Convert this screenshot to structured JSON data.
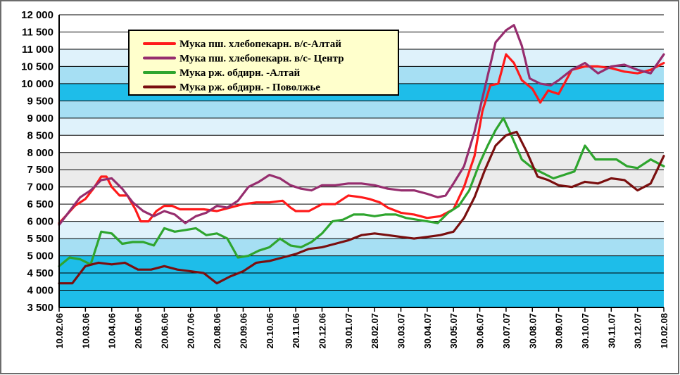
{
  "chart_data": {
    "type": "line",
    "title": "",
    "xlabel": "",
    "ylabel": "",
    "ylim": [
      3500,
      12000
    ],
    "yticks": [
      3500,
      4000,
      4500,
      5000,
      5500,
      6000,
      6500,
      7000,
      7500,
      8000,
      8500,
      9000,
      9500,
      10000,
      10500,
      11000,
      11500,
      12000
    ],
    "ytick_labels": [
      "3 500",
      "4 000",
      "4 500",
      "5 000",
      "5 500",
      "6 000",
      "6 500",
      "7 000",
      "7 500",
      "8 000",
      "8 500",
      "9 000",
      "9 500",
      "10 000",
      "10 500",
      "11 000",
      "11 500",
      "12 000"
    ],
    "categories": [
      "10.02.06",
      "10.03.06",
      "10.04.06",
      "20.05.06",
      "20.06.06",
      "20.07.06",
      "20.08.06",
      "20.09.06",
      "20.10.06",
      "20.11.06",
      "20.12.06",
      "30.01.07",
      "28.02.07",
      "30.03.07",
      "30.04.07",
      "30.05.07",
      "30.06.07",
      "30.07.07",
      "30.08.07",
      "30.09.07",
      "30.10.07",
      "30.11.07",
      "30.12.07",
      "10.02.08"
    ],
    "grid": true,
    "legend_position": "top-center",
    "background_bands": [
      "#1ebde9",
      "#a6dff3",
      "#dff2fb",
      "#ffffff",
      "#ebebeb"
    ],
    "series": [
      {
        "name": "Мука пш. хлебопекарн. в/с-Алтай",
        "color": "#ff1a1a",
        "points": [
          [
            0,
            5950
          ],
          [
            0.3,
            6200
          ],
          [
            0.6,
            6450
          ],
          [
            1,
            6650
          ],
          [
            1.3,
            6950
          ],
          [
            1.6,
            7300
          ],
          [
            1.8,
            7300
          ],
          [
            2,
            7000
          ],
          [
            2.3,
            6750
          ],
          [
            2.6,
            6750
          ],
          [
            2.9,
            6350
          ],
          [
            3.1,
            6000
          ],
          [
            3.4,
            6000
          ],
          [
            3.7,
            6300
          ],
          [
            4,
            6450
          ],
          [
            4.3,
            6450
          ],
          [
            4.6,
            6350
          ],
          [
            5,
            6350
          ],
          [
            5.5,
            6350
          ],
          [
            6,
            6300
          ],
          [
            6.5,
            6400
          ],
          [
            7,
            6500
          ],
          [
            7.5,
            6550
          ],
          [
            8,
            6550
          ],
          [
            8.5,
            6600
          ],
          [
            8.8,
            6400
          ],
          [
            9,
            6300
          ],
          [
            9.5,
            6300
          ],
          [
            10,
            6500
          ],
          [
            10.5,
            6500
          ],
          [
            11,
            6750
          ],
          [
            11.5,
            6700
          ],
          [
            11.8,
            6650
          ],
          [
            12.2,
            6550
          ],
          [
            12.5,
            6400
          ],
          [
            13,
            6250
          ],
          [
            13.5,
            6200
          ],
          [
            14,
            6100
          ],
          [
            14.5,
            6150
          ],
          [
            15,
            6350
          ],
          [
            15.4,
            7000
          ],
          [
            15.8,
            7900
          ],
          [
            16.1,
            9200
          ],
          [
            16.4,
            9950
          ],
          [
            16.7,
            10000
          ],
          [
            17,
            10850
          ],
          [
            17.3,
            10600
          ],
          [
            17.6,
            10100
          ],
          [
            18,
            9850
          ],
          [
            18.3,
            9450
          ],
          [
            18.6,
            9800
          ],
          [
            19,
            9700
          ],
          [
            19.5,
            10400
          ],
          [
            20,
            10500
          ],
          [
            20.5,
            10500
          ],
          [
            21,
            10450
          ],
          [
            21.5,
            10350
          ],
          [
            22,
            10300
          ],
          [
            22.5,
            10400
          ],
          [
            23,
            10600
          ]
        ]
      },
      {
        "name": "Мука пш. хлебопекарн. в/с- Центр",
        "color": "#962d6e",
        "points": [
          [
            0,
            5900
          ],
          [
            0.4,
            6300
          ],
          [
            0.8,
            6700
          ],
          [
            1.2,
            6900
          ],
          [
            1.6,
            7200
          ],
          [
            2,
            7250
          ],
          [
            2.4,
            6950
          ],
          [
            2.8,
            6550
          ],
          [
            3.2,
            6300
          ],
          [
            3.6,
            6150
          ],
          [
            4,
            6300
          ],
          [
            4.4,
            6200
          ],
          [
            4.8,
            5950
          ],
          [
            5.2,
            6150
          ],
          [
            5.6,
            6250
          ],
          [
            6,
            6450
          ],
          [
            6.4,
            6400
          ],
          [
            6.8,
            6600
          ],
          [
            7.2,
            7000
          ],
          [
            7.6,
            7150
          ],
          [
            8,
            7350
          ],
          [
            8.4,
            7250
          ],
          [
            8.8,
            7050
          ],
          [
            9.2,
            6950
          ],
          [
            9.6,
            6900
          ],
          [
            10,
            7050
          ],
          [
            10.5,
            7050
          ],
          [
            11,
            7100
          ],
          [
            11.5,
            7100
          ],
          [
            12,
            7050
          ],
          [
            12.5,
            6950
          ],
          [
            13,
            6900
          ],
          [
            13.5,
            6900
          ],
          [
            14,
            6800
          ],
          [
            14.4,
            6700
          ],
          [
            14.7,
            6750
          ],
          [
            15,
            7100
          ],
          [
            15.4,
            7600
          ],
          [
            15.8,
            8600
          ],
          [
            16.2,
            9900
          ],
          [
            16.6,
            11200
          ],
          [
            17,
            11550
          ],
          [
            17.3,
            11700
          ],
          [
            17.6,
            11100
          ],
          [
            17.9,
            10150
          ],
          [
            18.3,
            10000
          ],
          [
            18.7,
            9950
          ],
          [
            19,
            10100
          ],
          [
            19.5,
            10400
          ],
          [
            20,
            10600
          ],
          [
            20.5,
            10300
          ],
          [
            21,
            10500
          ],
          [
            21.5,
            10550
          ],
          [
            22,
            10400
          ],
          [
            22.5,
            10300
          ],
          [
            23,
            10850
          ]
        ]
      },
      {
        "name": "Мука рж. обдирн. -Алтай",
        "color": "#2ea52e",
        "points": [
          [
            0,
            4700
          ],
          [
            0.4,
            4950
          ],
          [
            0.8,
            4900
          ],
          [
            1.2,
            4750
          ],
          [
            1.6,
            5700
          ],
          [
            2,
            5650
          ],
          [
            2.4,
            5350
          ],
          [
            2.8,
            5400
          ],
          [
            3.2,
            5400
          ],
          [
            3.6,
            5300
          ],
          [
            4,
            5800
          ],
          [
            4.4,
            5700
          ],
          [
            4.8,
            5750
          ],
          [
            5.2,
            5800
          ],
          [
            5.6,
            5600
          ],
          [
            6,
            5650
          ],
          [
            6.4,
            5500
          ],
          [
            6.8,
            4950
          ],
          [
            7.2,
            5000
          ],
          [
            7.6,
            5150
          ],
          [
            8,
            5250
          ],
          [
            8.4,
            5500
          ],
          [
            8.8,
            5300
          ],
          [
            9.2,
            5250
          ],
          [
            9.6,
            5400
          ],
          [
            10,
            5650
          ],
          [
            10.4,
            6000
          ],
          [
            10.8,
            6050
          ],
          [
            11.2,
            6200
          ],
          [
            11.6,
            6200
          ],
          [
            12,
            6150
          ],
          [
            12.4,
            6200
          ],
          [
            12.8,
            6200
          ],
          [
            13.2,
            6100
          ],
          [
            13.6,
            6050
          ],
          [
            14,
            6000
          ],
          [
            14.4,
            5950
          ],
          [
            14.8,
            6250
          ],
          [
            15.2,
            6450
          ],
          [
            15.6,
            6900
          ],
          [
            16,
            7700
          ],
          [
            16.3,
            8200
          ],
          [
            16.6,
            8650
          ],
          [
            16.9,
            9000
          ],
          [
            17.2,
            8500
          ],
          [
            17.6,
            7800
          ],
          [
            18,
            7550
          ],
          [
            18.4,
            7400
          ],
          [
            18.8,
            7250
          ],
          [
            19.2,
            7350
          ],
          [
            19.6,
            7450
          ],
          [
            20,
            8200
          ],
          [
            20.4,
            7800
          ],
          [
            20.8,
            7800
          ],
          [
            21.2,
            7800
          ],
          [
            21.6,
            7600
          ],
          [
            22,
            7550
          ],
          [
            22.5,
            7800
          ],
          [
            23,
            7600
          ]
        ]
      },
      {
        "name": "Мука рж. обдирн. - Поволжье",
        "color": "#7a0f0f",
        "points": [
          [
            0,
            4200
          ],
          [
            0.5,
            4200
          ],
          [
            1,
            4700
          ],
          [
            1.5,
            4800
          ],
          [
            2,
            4750
          ],
          [
            2.5,
            4800
          ],
          [
            3,
            4600
          ],
          [
            3.5,
            4600
          ],
          [
            4,
            4700
          ],
          [
            4.5,
            4600
          ],
          [
            5,
            4550
          ],
          [
            5.5,
            4500
          ],
          [
            6,
            4200
          ],
          [
            6.5,
            4400
          ],
          [
            7,
            4550
          ],
          [
            7.5,
            4800
          ],
          [
            8,
            4850
          ],
          [
            8.5,
            4950
          ],
          [
            9,
            5050
          ],
          [
            9.5,
            5200
          ],
          [
            10,
            5250
          ],
          [
            10.5,
            5350
          ],
          [
            11,
            5450
          ],
          [
            11.5,
            5600
          ],
          [
            12,
            5650
          ],
          [
            12.5,
            5600
          ],
          [
            13,
            5550
          ],
          [
            13.5,
            5500
          ],
          [
            14,
            5550
          ],
          [
            14.5,
            5600
          ],
          [
            15,
            5700
          ],
          [
            15.4,
            6100
          ],
          [
            15.8,
            6700
          ],
          [
            16.2,
            7500
          ],
          [
            16.6,
            8200
          ],
          [
            17,
            8500
          ],
          [
            17.4,
            8600
          ],
          [
            17.8,
            8000
          ],
          [
            18.2,
            7300
          ],
          [
            18.6,
            7200
          ],
          [
            19,
            7050
          ],
          [
            19.5,
            7000
          ],
          [
            20,
            7150
          ],
          [
            20.5,
            7100
          ],
          [
            21,
            7250
          ],
          [
            21.5,
            7200
          ],
          [
            22,
            6900
          ],
          [
            22.5,
            7100
          ],
          [
            23,
            7900
          ]
        ]
      }
    ]
  }
}
